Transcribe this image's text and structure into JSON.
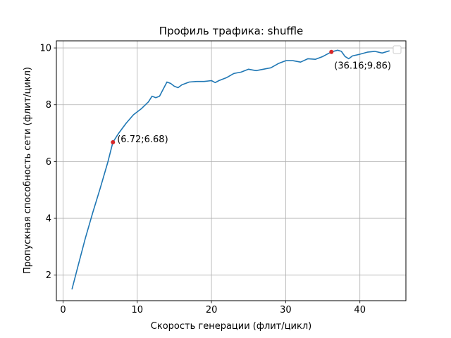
{
  "chart_data": {
    "type": "line",
    "title": "Профиль трафика: shuffle",
    "xlabel": "Скорость генерации (флит/цикл)",
    "ylabel": "Пропускная способность сети (флит/цикл)",
    "xlim": [
      -0.9,
      46.2
    ],
    "ylim": [
      1.1,
      10.25
    ],
    "xticks": [
      0,
      10,
      20,
      30,
      40
    ],
    "yticks": [
      2,
      4,
      6,
      8,
      10
    ],
    "grid": true,
    "legend": "top-right, empty",
    "series": [
      {
        "color": "#1f77b4",
        "points": [
          [
            1.2,
            1.5
          ],
          [
            2.0,
            2.3
          ],
          [
            3.0,
            3.3
          ],
          [
            4.0,
            4.2
          ],
          [
            5.0,
            5.05
          ],
          [
            6.0,
            5.95
          ],
          [
            6.72,
            6.68
          ],
          [
            7.5,
            7.0
          ],
          [
            8.5,
            7.35
          ],
          [
            9.5,
            7.65
          ],
          [
            10.5,
            7.85
          ],
          [
            11.5,
            8.1
          ],
          [
            12.0,
            8.3
          ],
          [
            12.5,
            8.25
          ],
          [
            13.0,
            8.3
          ],
          [
            13.5,
            8.55
          ],
          [
            14.0,
            8.8
          ],
          [
            14.5,
            8.75
          ],
          [
            15.0,
            8.65
          ],
          [
            15.5,
            8.6
          ],
          [
            16.0,
            8.7
          ],
          [
            17.0,
            8.8
          ],
          [
            18.0,
            8.82
          ],
          [
            19.0,
            8.82
          ],
          [
            20.0,
            8.85
          ],
          [
            20.5,
            8.78
          ],
          [
            21.0,
            8.85
          ],
          [
            22.0,
            8.95
          ],
          [
            23.0,
            9.1
          ],
          [
            24.0,
            9.15
          ],
          [
            25.0,
            9.25
          ],
          [
            26.0,
            9.2
          ],
          [
            27.0,
            9.25
          ],
          [
            28.0,
            9.3
          ],
          [
            29.0,
            9.45
          ],
          [
            30.0,
            9.55
          ],
          [
            31.0,
            9.55
          ],
          [
            32.0,
            9.5
          ],
          [
            33.0,
            9.62
          ],
          [
            34.0,
            9.6
          ],
          [
            35.0,
            9.7
          ],
          [
            36.16,
            9.86
          ],
          [
            37.0,
            9.92
          ],
          [
            37.5,
            9.88
          ],
          [
            38.0,
            9.7
          ],
          [
            38.5,
            9.62
          ],
          [
            39.0,
            9.72
          ],
          [
            40.0,
            9.78
          ],
          [
            41.0,
            9.85
          ],
          [
            42.0,
            9.88
          ],
          [
            43.0,
            9.82
          ],
          [
            44.0,
            9.9
          ]
        ]
      }
    ],
    "highlights": [
      {
        "x": 6.72,
        "y": 6.68,
        "label": "(6.72;6.68)",
        "color": "#d62728"
      },
      {
        "x": 36.16,
        "y": 9.86,
        "label": "(36.16;9.86)",
        "color": "#d62728"
      }
    ]
  }
}
